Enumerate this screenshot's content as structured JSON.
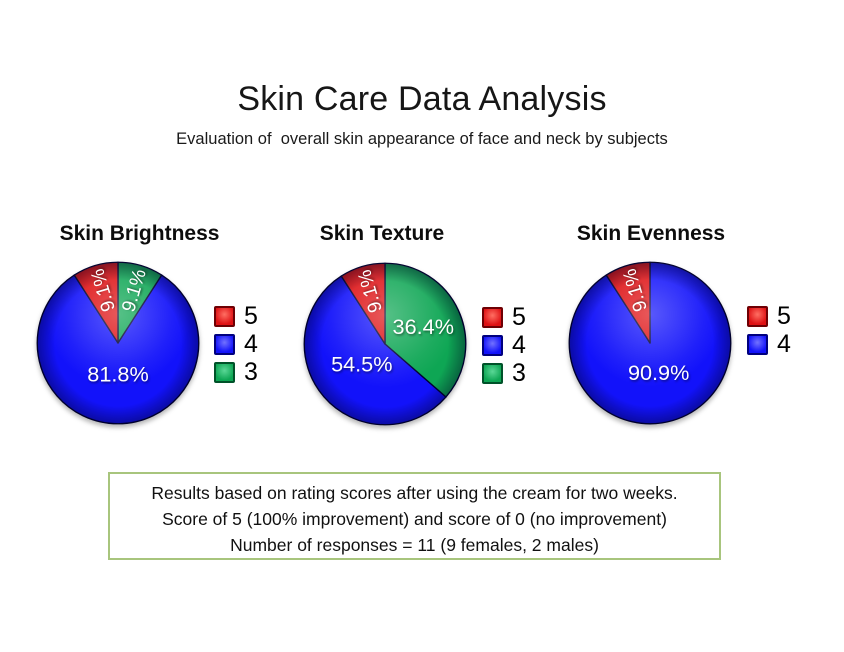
{
  "page": {
    "background": "#ffffff"
  },
  "header": {
    "title": "Skin Care Data Analysis",
    "subtitle": "Evaluation of  overall skin appearance of face and neck by subjects"
  },
  "palette": {
    "outline": "#000030",
    "red": {
      "base": "#de1114",
      "dark": "#6e0004",
      "light": "#ff6f63"
    },
    "blue": {
      "base": "#1212fa",
      "dark": "#00007e",
      "light": "#7272ff"
    },
    "green": {
      "base": "#0ea654",
      "dark": "#005229",
      "light": "#5ad796"
    }
  },
  "chart_data": [
    {
      "type": "pie",
      "title": "Skin Brightness",
      "start_angle_deg": 0,
      "direction": "clockwise",
      "slices": [
        {
          "score": "3",
          "value": 9.1,
          "label_text": "9.1%",
          "color_key": "green"
        },
        {
          "score": "4",
          "value": 81.8,
          "label_text": "81.8%",
          "color_key": "blue"
        },
        {
          "score": "5",
          "value": 9.1,
          "label_text": "9.1%",
          "color_key": "red"
        }
      ],
      "legend": [
        {
          "label": "5",
          "color_key": "red"
        },
        {
          "label": "4",
          "color_key": "blue"
        },
        {
          "label": "3",
          "color_key": "green"
        }
      ]
    },
    {
      "type": "pie",
      "title": "Skin Texture",
      "start_angle_deg": 0,
      "direction": "clockwise",
      "slices": [
        {
          "score": "3",
          "value": 36.4,
          "label_text": "36.4%",
          "color_key": "green"
        },
        {
          "score": "4",
          "value": 54.5,
          "label_text": "54.5%",
          "color_key": "blue"
        },
        {
          "score": "5",
          "value": 9.1,
          "label_text": "9.1%",
          "color_key": "red"
        }
      ],
      "legend": [
        {
          "label": "5",
          "color_key": "red"
        },
        {
          "label": "4",
          "color_key": "blue"
        },
        {
          "label": "3",
          "color_key": "green"
        }
      ]
    },
    {
      "type": "pie",
      "title": "Skin Evenness",
      "start_angle_deg": 0,
      "direction": "clockwise",
      "slices": [
        {
          "score": "4",
          "value": 90.9,
          "label_text": "90.9%",
          "color_key": "blue"
        },
        {
          "score": "5",
          "value": 9.1,
          "label_text": "9.1%",
          "color_key": "red"
        }
      ],
      "legend": [
        {
          "label": "5",
          "color_key": "red"
        },
        {
          "label": "4",
          "color_key": "blue"
        }
      ]
    }
  ],
  "footnote": {
    "border_color": "#a8c57d",
    "lines": [
      "Results based on rating scores after using the cream for two weeks.",
      "Score of 5 (100% improvement) and score of 0 (no improvement)",
      "Number of responses = 11 (9 females, 2 males)"
    ]
  }
}
